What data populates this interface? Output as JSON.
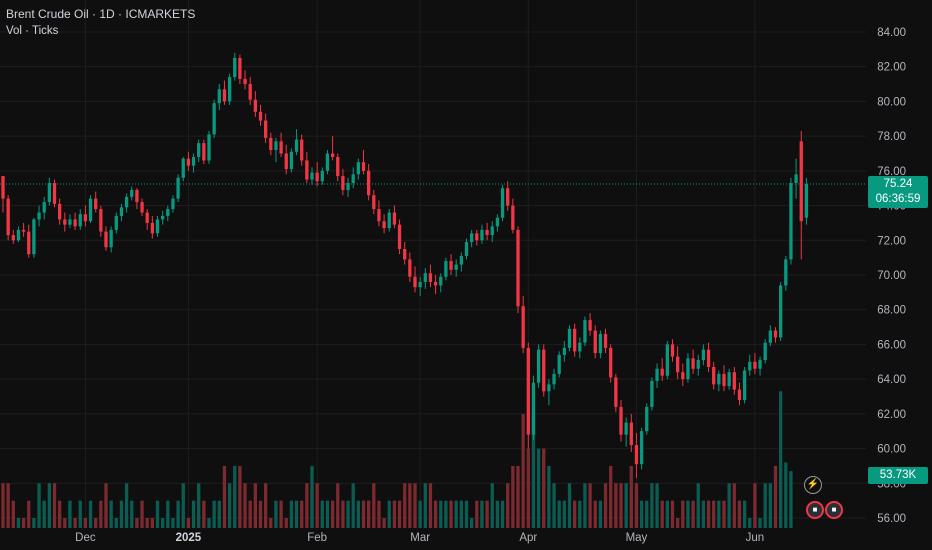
{
  "header": {
    "title": "Brent Crude Oil · 1D · ICMARKETS",
    "indicator": "Vol · Ticks"
  },
  "colors": {
    "background": "#0f0f0f",
    "grid": "#1e1e1e",
    "up": "#089981",
    "down": "#f23645",
    "volume_up": "#0a5d53",
    "volume_down": "#7c2a30"
  },
  "price_badge": {
    "price": "75.24",
    "countdown": "06:36:59"
  },
  "volume_badge": "53.73K",
  "events": {
    "bolt_icon": "lightning-icon",
    "flag_icon": "us-flag-icon"
  },
  "chart_data": {
    "type": "candlestick",
    "symbol": "Brent Crude Oil",
    "interval": "1D",
    "exchange": "ICMARKETS",
    "y_axis": {
      "ticks": [
        "84.00",
        "82.00",
        "80.00",
        "78.00",
        "76.00",
        "74.00",
        "72.00",
        "70.00",
        "68.00",
        "66.00",
        "64.00",
        "62.00",
        "60.00",
        "58.00",
        "56.00"
      ],
      "range": [
        55.5,
        85.1
      ]
    },
    "x_axis": {
      "labels": [
        "Dec",
        "2025",
        "Feb",
        "Mar",
        "Apr",
        "May",
        "Jun"
      ]
    },
    "last_price": 75.24,
    "grid": true,
    "ohlc": [
      [
        75.7,
        75.7,
        73.6,
        74.4
      ],
      [
        74.4,
        74.6,
        72.0,
        72.3
      ],
      [
        72.3,
        72.6,
        71.8,
        72.0
      ],
      [
        72.0,
        72.8,
        71.9,
        72.6
      ],
      [
        72.6,
        73.0,
        72.2,
        72.5
      ],
      [
        72.5,
        72.9,
        71.0,
        71.2
      ],
      [
        71.2,
        73.3,
        71.0,
        73.2
      ],
      [
        73.2,
        74.0,
        72.8,
        73.6
      ],
      [
        73.6,
        74.5,
        73.2,
        74.2
      ],
      [
        74.2,
        75.6,
        74.0,
        75.3
      ],
      [
        75.3,
        75.5,
        73.9,
        74.1
      ],
      [
        74.1,
        74.4,
        72.9,
        73.2
      ],
      [
        73.2,
        73.6,
        72.5,
        72.9
      ],
      [
        72.9,
        73.5,
        72.7,
        73.2
      ],
      [
        73.2,
        73.6,
        72.6,
        72.8
      ],
      [
        72.8,
        73.8,
        72.6,
        73.5
      ],
      [
        73.5,
        74.0,
        72.8,
        73.1
      ],
      [
        73.1,
        74.6,
        73.0,
        74.4
      ],
      [
        74.4,
        74.8,
        73.6,
        73.8
      ],
      [
        73.8,
        74.0,
        72.2,
        72.5
      ],
      [
        72.5,
        72.8,
        71.4,
        71.6
      ],
      [
        71.6,
        72.8,
        71.3,
        72.6
      ],
      [
        72.6,
        73.6,
        72.4,
        73.4
      ],
      [
        73.4,
        74.1,
        73.1,
        73.9
      ],
      [
        73.9,
        74.7,
        73.6,
        74.5
      ],
      [
        74.5,
        75.1,
        74.3,
        74.9
      ],
      [
        74.9,
        75.0,
        73.8,
        74.2
      ],
      [
        74.2,
        74.4,
        73.4,
        73.6
      ],
      [
        73.6,
        73.8,
        72.6,
        73.0
      ],
      [
        73.0,
        73.4,
        72.1,
        72.4
      ],
      [
        72.4,
        73.4,
        72.2,
        73.2
      ],
      [
        73.2,
        73.7,
        72.9,
        73.4
      ],
      [
        73.4,
        74.0,
        73.1,
        73.8
      ],
      [
        73.8,
        74.6,
        73.6,
        74.4
      ],
      [
        74.4,
        75.8,
        74.2,
        75.6
      ],
      [
        75.6,
        76.8,
        75.4,
        76.7
      ],
      [
        76.7,
        77.1,
        76.0,
        76.3
      ],
      [
        76.3,
        77.0,
        75.9,
        76.8
      ],
      [
        76.8,
        77.8,
        76.5,
        77.6
      ],
      [
        77.6,
        77.8,
        76.4,
        76.6
      ],
      [
        76.6,
        78.3,
        76.4,
        78.1
      ],
      [
        78.1,
        80.1,
        77.9,
        79.9
      ],
      [
        79.9,
        81.0,
        79.5,
        80.7
      ],
      [
        80.7,
        81.2,
        79.8,
        80.0
      ],
      [
        80.0,
        81.6,
        79.8,
        81.4
      ],
      [
        81.4,
        82.8,
        81.2,
        82.5
      ],
      [
        82.5,
        82.7,
        81.0,
        81.3
      ],
      [
        81.3,
        81.8,
        80.7,
        81.0
      ],
      [
        81.0,
        81.4,
        79.8,
        80.1
      ],
      [
        80.1,
        80.6,
        79.1,
        79.4
      ],
      [
        79.4,
        79.8,
        78.6,
        78.9
      ],
      [
        78.9,
        79.3,
        77.6,
        77.9
      ],
      [
        77.9,
        78.2,
        76.9,
        77.2
      ],
      [
        77.2,
        77.9,
        76.5,
        77.7
      ],
      [
        77.7,
        78.2,
        76.8,
        77.0
      ],
      [
        77.0,
        77.5,
        75.8,
        76.1
      ],
      [
        76.1,
        77.3,
        75.9,
        77.1
      ],
      [
        77.1,
        78.4,
        76.9,
        77.8
      ],
      [
        77.8,
        78.1,
        76.3,
        76.6
      ],
      [
        76.6,
        77.1,
        75.3,
        75.5
      ],
      [
        75.5,
        76.2,
        75.2,
        75.9
      ],
      [
        75.9,
        76.5,
        75.1,
        75.4
      ],
      [
        75.4,
        76.2,
        75.2,
        76.0
      ],
      [
        76.0,
        77.2,
        75.8,
        77.0
      ],
      [
        77.0,
        78.0,
        76.6,
        76.8
      ],
      [
        76.8,
        77.0,
        75.4,
        75.7
      ],
      [
        75.7,
        76.1,
        74.6,
        74.9
      ],
      [
        74.9,
        75.6,
        74.5,
        75.3
      ],
      [
        75.3,
        76.2,
        75.0,
        75.8
      ],
      [
        75.8,
        76.7,
        75.5,
        76.5
      ],
      [
        76.5,
        77.2,
        75.8,
        76.0
      ],
      [
        76.0,
        76.4,
        74.3,
        74.6
      ],
      [
        74.6,
        74.9,
        73.5,
        73.8
      ],
      [
        73.8,
        74.3,
        72.8,
        73.1
      ],
      [
        73.1,
        73.5,
        72.4,
        72.7
      ],
      [
        72.7,
        73.8,
        72.5,
        73.6
      ],
      [
        73.6,
        74.0,
        72.7,
        72.9
      ],
      [
        72.9,
        73.2,
        71.2,
        71.5
      ],
      [
        71.5,
        71.9,
        70.6,
        70.9
      ],
      [
        70.9,
        71.3,
        69.6,
        69.9
      ],
      [
        69.9,
        70.5,
        69.0,
        69.3
      ],
      [
        69.3,
        69.9,
        68.8,
        69.6
      ],
      [
        69.6,
        70.4,
        69.2,
        70.1
      ],
      [
        70.1,
        70.6,
        69.3,
        69.6
      ],
      [
        69.6,
        70.0,
        68.9,
        69.4
      ],
      [
        69.4,
        70.1,
        69.0,
        69.9
      ],
      [
        69.9,
        71.0,
        69.7,
        70.8
      ],
      [
        70.8,
        71.2,
        70.0,
        70.3
      ],
      [
        70.3,
        70.9,
        69.9,
        70.6
      ],
      [
        70.6,
        71.3,
        70.2,
        71.1
      ],
      [
        71.1,
        72.1,
        70.9,
        71.9
      ],
      [
        71.9,
        72.6,
        71.6,
        72.4
      ],
      [
        72.4,
        72.6,
        71.7,
        72.0
      ],
      [
        72.0,
        72.9,
        71.8,
        72.6
      ],
      [
        72.6,
        73.0,
        72.0,
        72.3
      ],
      [
        72.3,
        73.1,
        71.9,
        72.8
      ],
      [
        72.8,
        73.5,
        72.5,
        73.3
      ],
      [
        73.3,
        75.2,
        73.1,
        75.0
      ],
      [
        75.0,
        75.4,
        73.7,
        74.0
      ],
      [
        74.0,
        74.4,
        72.4,
        72.6
      ],
      [
        72.6,
        72.8,
        67.8,
        68.2
      ],
      [
        68.2,
        68.8,
        65.5,
        65.8
      ],
      [
        65.8,
        66.1,
        60.0,
        60.8
      ],
      [
        60.8,
        64.2,
        60.5,
        63.8
      ],
      [
        63.8,
        66.0,
        63.5,
        65.7
      ],
      [
        65.7,
        66.0,
        63.0,
        63.3
      ],
      [
        63.3,
        64.0,
        62.5,
        63.7
      ],
      [
        63.7,
        64.6,
        63.4,
        64.3
      ],
      [
        64.3,
        65.6,
        64.1,
        65.4
      ],
      [
        65.4,
        66.2,
        65.0,
        65.8
      ],
      [
        65.8,
        67.1,
        65.6,
        66.9
      ],
      [
        66.9,
        67.2,
        65.3,
        65.6
      ],
      [
        65.6,
        66.4,
        65.2,
        66.1
      ],
      [
        66.1,
        67.6,
        65.9,
        67.4
      ],
      [
        67.4,
        67.8,
        66.5,
        66.8
      ],
      [
        66.8,
        67.1,
        65.2,
        65.5
      ],
      [
        65.5,
        66.8,
        65.2,
        66.6
      ],
      [
        66.6,
        66.9,
        65.5,
        65.8
      ],
      [
        65.8,
        66.0,
        63.8,
        64.1
      ],
      [
        64.1,
        64.3,
        62.1,
        62.4
      ],
      [
        62.4,
        62.8,
        60.4,
        60.8
      ],
      [
        60.8,
        61.8,
        60.1,
        61.5
      ],
      [
        61.5,
        62.0,
        59.8,
        60.2
      ],
      [
        60.2,
        60.9,
        58.3,
        59.1
      ],
      [
        59.1,
        61.2,
        58.8,
        61.0
      ],
      [
        61.0,
        62.6,
        60.8,
        62.4
      ],
      [
        62.4,
        64.1,
        62.2,
        63.9
      ],
      [
        63.9,
        64.9,
        63.5,
        64.6
      ],
      [
        64.6,
        65.2,
        63.9,
        64.2
      ],
      [
        64.2,
        66.2,
        64.0,
        66.0
      ],
      [
        66.0,
        66.3,
        65.0,
        65.3
      ],
      [
        65.3,
        65.9,
        64.0,
        64.4
      ],
      [
        64.4,
        64.9,
        63.6,
        64.0
      ],
      [
        64.0,
        65.5,
        63.8,
        65.2
      ],
      [
        65.2,
        65.7,
        64.3,
        64.6
      ],
      [
        64.6,
        65.4,
        64.2,
        65.1
      ],
      [
        65.1,
        66.0,
        64.8,
        65.7
      ],
      [
        65.7,
        66.1,
        64.4,
        64.7
      ],
      [
        64.7,
        65.0,
        63.4,
        63.7
      ],
      [
        63.7,
        64.5,
        63.3,
        64.3
      ],
      [
        64.3,
        64.8,
        63.3,
        63.6
      ],
      [
        63.6,
        64.6,
        63.4,
        64.4
      ],
      [
        64.4,
        64.7,
        63.1,
        63.4
      ],
      [
        63.4,
        63.8,
        62.5,
        62.8
      ],
      [
        62.8,
        64.7,
        62.6,
        64.5
      ],
      [
        64.5,
        65.4,
        64.2,
        65.0
      ],
      [
        65.0,
        65.5,
        64.3,
        64.6
      ],
      [
        64.6,
        65.3,
        64.2,
        65.1
      ],
      [
        65.1,
        66.3,
        64.9,
        66.1
      ],
      [
        66.1,
        67.1,
        65.9,
        66.8
      ],
      [
        66.8,
        67.0,
        66.1,
        66.4
      ],
      [
        66.4,
        69.6,
        66.2,
        69.4
      ],
      [
        69.4,
        71.1,
        69.1,
        70.9
      ],
      [
        70.9,
        75.6,
        70.6,
        75.3
      ],
      [
        75.3,
        76.7,
        74.4,
        75.8
      ],
      [
        77.7,
        78.3,
        70.9,
        73.1
      ],
      [
        73.3,
        75.6,
        72.9,
        75.24
      ]
    ],
    "volume": [
      58,
      58,
      57,
      56,
      56,
      57,
      56,
      58,
      57,
      58,
      58,
      57,
      56,
      57,
      56,
      57,
      56,
      57,
      56,
      57,
      58,
      57,
      56,
      57,
      58,
      57,
      56,
      57,
      56,
      56,
      57,
      56,
      57,
      56,
      57,
      58,
      56,
      57,
      58,
      57,
      56,
      57,
      57,
      59,
      58,
      59,
      59,
      58,
      57,
      58,
      57,
      58,
      56,
      57,
      57,
      56,
      57,
      57,
      57,
      58,
      59,
      58,
      57,
      57,
      57,
      58,
      57,
      57,
      58,
      57,
      57,
      57,
      58,
      57,
      56,
      57,
      57,
      57,
      58,
      58,
      58,
      57,
      58,
      58,
      57,
      57,
      57,
      57,
      57,
      57,
      57,
      56,
      57,
      57,
      57,
      58,
      57,
      57,
      58,
      59,
      59,
      62,
      60,
      62,
      60,
      60,
      59,
      58,
      57,
      57,
      58,
      57,
      57,
      58,
      58,
      57,
      57,
      58,
      59,
      58,
      58,
      58,
      59,
      58,
      57,
      57,
      58,
      58,
      57,
      57,
      57,
      56,
      57,
      57,
      57,
      58,
      57,
      57,
      57,
      57,
      57,
      58,
      58,
      57,
      57,
      56,
      58,
      56,
      58,
      58,
      59,
      63.3,
      59.2,
      58.7
    ]
  }
}
